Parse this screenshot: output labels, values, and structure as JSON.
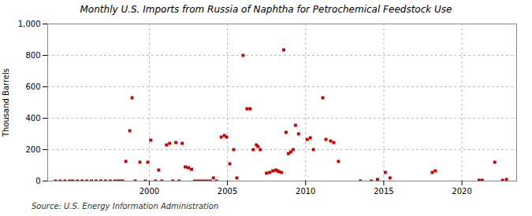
{
  "chart_data": {
    "type": "scatter",
    "title": "Monthly U.S. Imports from Russia of Naphtha for Petrochemical Feedstock Use",
    "ylabel": "Thousand Barrels",
    "annotations": [
      "Source: U.S. Energy Information Administration"
    ],
    "color": "#CC0000",
    "marker": "square",
    "grid": true,
    "xlim": [
      1993.5,
      2023.5
    ],
    "ylim": [
      0,
      1000
    ],
    "xticks": [
      2000,
      2005,
      2010,
      2015,
      2020
    ],
    "yticks": [
      0,
      200,
      400,
      600,
      800,
      {
        "value": 1000,
        "label": "1,000"
      }
    ],
    "x": [
      1994.0,
      1994.3,
      1994.6,
      1994.9,
      1995.1,
      1995.4,
      1995.7,
      1996.0,
      1996.3,
      1996.6,
      1996.9,
      1997.2,
      1997.5,
      1997.8,
      1998.0,
      1998.15,
      1998.3,
      1998.5,
      1998.75,
      1998.9,
      1999.1,
      1999.4,
      1999.75,
      1999.9,
      2000.1,
      2000.4,
      2000.6,
      2000.8,
      2001.1,
      2001.3,
      2001.5,
      2001.7,
      2001.9,
      2002.1,
      2002.3,
      2002.5,
      2002.7,
      2002.9,
      2003.1,
      2003.3,
      2003.5,
      2003.7,
      2003.9,
      2004.1,
      2004.3,
      2004.6,
      2004.8,
      2004.95,
      2005.15,
      2005.4,
      2005.6,
      2006.0,
      2006.25,
      2006.45,
      2006.65,
      2006.85,
      2006.95,
      2007.1,
      2007.5,
      2007.7,
      2007.9,
      2008.1,
      2008.2,
      2008.3,
      2008.45,
      2008.6,
      2008.75,
      2008.9,
      2009.05,
      2009.2,
      2009.35,
      2009.55,
      2010.1,
      2010.3,
      2010.5,
      2011.1,
      2011.3,
      2011.6,
      2011.8,
      2012.1,
      2013.5,
      2014.2,
      2014.6,
      2015.1,
      2015.4,
      2018.1,
      2018.3,
      2021.1,
      2021.3,
      2022.1,
      2022.6,
      2022.85
    ],
    "values": [
      0,
      0,
      0,
      0,
      0,
      0,
      0,
      0,
      0,
      0,
      0,
      0,
      0,
      0,
      0,
      0,
      0,
      125,
      320,
      530,
      0,
      120,
      0,
      120,
      260,
      0,
      70,
      0,
      230,
      240,
      0,
      245,
      0,
      240,
      90,
      85,
      75,
      0,
      0,
      0,
      0,
      0,
      0,
      20,
      0,
      280,
      290,
      280,
      110,
      200,
      20,
      800,
      460,
      460,
      200,
      230,
      220,
      200,
      50,
      55,
      65,
      70,
      65,
      60,
      55,
      835,
      310,
      175,
      185,
      200,
      355,
      300,
      265,
      275,
      200,
      530,
      265,
      255,
      245,
      125,
      0,
      0,
      10,
      55,
      20,
      55,
      65,
      5,
      5,
      120,
      5,
      10
    ]
  }
}
